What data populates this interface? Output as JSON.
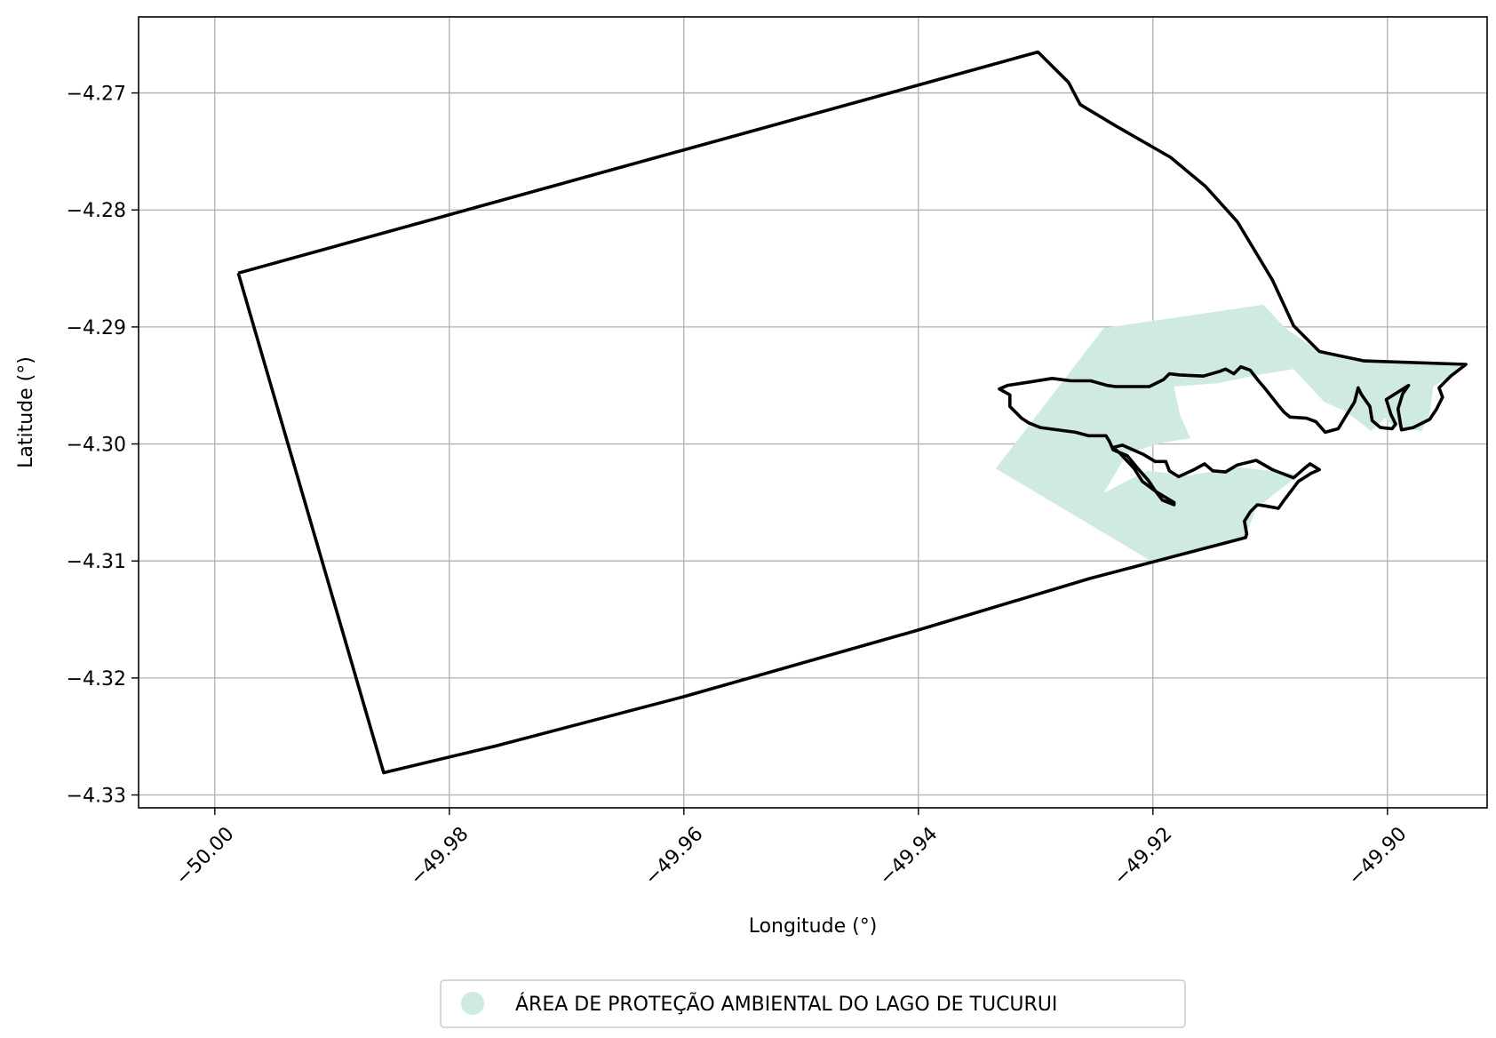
{
  "map": {
    "xlabel": "Longitude (°)",
    "ylabel": "Latitude (°)",
    "xlim": [
      -50.0065,
      -49.8915
    ],
    "ylim": [
      -4.3311,
      -4.2635
    ],
    "grid": true,
    "legend_placement": "bottom-center",
    "x_ticks": [
      {
        "value": -50.0,
        "label": "−50.00"
      },
      {
        "value": -49.98,
        "label": "−49.98"
      },
      {
        "value": -49.96,
        "label": "−49.96"
      },
      {
        "value": -49.94,
        "label": "−49.94"
      },
      {
        "value": -49.92,
        "label": "−49.92"
      },
      {
        "value": -49.9,
        "label": "−49.90"
      }
    ],
    "y_ticks": [
      {
        "value": -4.27,
        "label": "−4.27"
      },
      {
        "value": -4.28,
        "label": "−4.28"
      },
      {
        "value": -4.29,
        "label": "−4.29"
      },
      {
        "value": -4.3,
        "label": "−4.30"
      },
      {
        "value": -4.31,
        "label": "−4.31"
      },
      {
        "value": -4.32,
        "label": "−4.32"
      },
      {
        "value": -4.33,
        "label": "−4.33"
      }
    ],
    "colors": {
      "boundary": "#000000",
      "protected_area": "#cfeade",
      "grid": "#b0b0b0",
      "axes": "#000000"
    },
    "layers": {
      "protected_area": {
        "name": "ÁREA DE PROTEÇÃO AMBIENTAL DO LAGO DE TUCURUI",
        "coords": [
          [
            -49.9334,
            -4.3021
          ],
          [
            -49.9242,
            -4.2901
          ],
          [
            -49.9106,
            -4.2881
          ],
          [
            -49.9087,
            -4.2901
          ],
          [
            -49.9057,
            -4.2922
          ],
          [
            -49.9017,
            -4.2929
          ],
          [
            -49.8933,
            -4.2933
          ],
          [
            -49.8961,
            -4.2951
          ],
          [
            -49.8964,
            -4.2975
          ],
          [
            -49.8971,
            -4.2989
          ],
          [
            -49.8995,
            -4.2985
          ],
          [
            -49.9002,
            -4.2978
          ],
          [
            -49.9014,
            -4.2989
          ],
          [
            -49.9028,
            -4.2978
          ],
          [
            -49.9038,
            -4.2971
          ],
          [
            -49.9054,
            -4.2964
          ],
          [
            -49.908,
            -4.2936
          ],
          [
            -49.9111,
            -4.2941
          ],
          [
            -49.9144,
            -4.2948
          ],
          [
            -49.9182,
            -4.2951
          ],
          [
            -49.9177,
            -4.2975
          ],
          [
            -49.9168,
            -4.2995
          ],
          [
            -49.9192,
            -4.2999
          ],
          [
            -49.9222,
            -4.3008
          ],
          [
            -49.9242,
            -4.3042
          ],
          [
            -49.9205,
            -4.3023
          ],
          [
            -49.917,
            -4.3027
          ],
          [
            -49.9126,
            -4.302
          ],
          [
            -49.9075,
            -4.3026
          ],
          [
            -49.9112,
            -4.3055
          ],
          [
            -49.9122,
            -4.3081
          ],
          [
            -49.92,
            -4.3101
          ]
        ]
      },
      "municipality_boundary": {
        "coords": [
          [
            -49.998,
            -4.2854
          ],
          [
            -49.9298,
            -4.2665
          ],
          [
            -49.9272,
            -4.2691
          ],
          [
            -49.9262,
            -4.271
          ],
          [
            -49.9232,
            -4.2728
          ],
          [
            -49.9185,
            -4.2755
          ],
          [
            -49.9155,
            -4.278
          ],
          [
            -49.9128,
            -4.281
          ],
          [
            -49.9098,
            -4.286
          ],
          [
            -49.908,
            -4.2899
          ],
          [
            -49.9058,
            -4.2921
          ],
          [
            -49.902,
            -4.2929
          ],
          [
            -49.8933,
            -4.2932
          ],
          [
            -49.8946,
            -4.2942
          ],
          [
            -49.8956,
            -4.2952
          ],
          [
            -49.8953,
            -4.296
          ],
          [
            -49.8958,
            -4.297
          ],
          [
            -49.8964,
            -4.2979
          ],
          [
            -49.8978,
            -4.2986
          ],
          [
            -49.8988,
            -4.2988
          ],
          [
            -49.8991,
            -4.297
          ],
          [
            -49.8987,
            -4.2957
          ],
          [
            -49.8982,
            -4.295
          ],
          [
            -49.8993,
            -4.2957
          ],
          [
            -49.9001,
            -4.2962
          ],
          [
            -49.8997,
            -4.2975
          ],
          [
            -49.8993,
            -4.2983
          ],
          [
            -49.8996,
            -4.2987
          ],
          [
            -49.9006,
            -4.2986
          ],
          [
            -49.9013,
            -4.298
          ],
          [
            -49.9015,
            -4.2968
          ],
          [
            -49.9022,
            -4.2958
          ],
          [
            -49.9025,
            -4.2952
          ],
          [
            -49.9028,
            -4.2964
          ],
          [
            -49.9036,
            -4.2977
          ],
          [
            -49.9042,
            -4.2987
          ],
          [
            -49.9053,
            -4.299
          ],
          [
            -49.9061,
            -4.2981
          ],
          [
            -49.9069,
            -4.2978
          ],
          [
            -49.9083,
            -4.2977
          ],
          [
            -49.9088,
            -4.2973
          ],
          [
            -49.9093,
            -4.2967
          ],
          [
            -49.9104,
            -4.2953
          ],
          [
            -49.911,
            -4.2946
          ],
          [
            -49.9117,
            -4.2937
          ],
          [
            -49.9125,
            -4.2934
          ],
          [
            -49.9131,
            -4.294
          ],
          [
            -49.9138,
            -4.2936
          ],
          [
            -49.9143,
            -4.2938
          ],
          [
            -49.9157,
            -4.2942
          ],
          [
            -49.9177,
            -4.2941
          ],
          [
            -49.9186,
            -4.294
          ],
          [
            -49.9191,
            -4.2945
          ],
          [
            -49.9203,
            -4.2951
          ],
          [
            -49.922,
            -4.2951
          ],
          [
            -49.9232,
            -4.2951
          ],
          [
            -49.9239,
            -4.295
          ],
          [
            -49.9253,
            -4.2946
          ],
          [
            -49.927,
            -4.2946
          ],
          [
            -49.9286,
            -4.2944
          ],
          [
            -49.9305,
            -4.2947
          ],
          [
            -49.9324,
            -4.295
          ],
          [
            -49.9331,
            -4.2953
          ],
          [
            -49.9322,
            -4.2958
          ],
          [
            -49.9322,
            -4.2968
          ],
          [
            -49.9312,
            -4.2978
          ],
          [
            -49.9306,
            -4.2982
          ],
          [
            -49.9296,
            -4.2986
          ],
          [
            -49.9266,
            -4.299
          ],
          [
            -49.9255,
            -4.2993
          ],
          [
            -49.924,
            -4.2993
          ],
          [
            -49.9237,
            -4.2998
          ],
          [
            -49.9234,
            -4.3005
          ],
          [
            -49.9222,
            -4.301
          ],
          [
            -49.9212,
            -4.3022
          ],
          [
            -49.9204,
            -4.3031
          ],
          [
            -49.9198,
            -4.304
          ],
          [
            -49.9192,
            -4.3048
          ],
          [
            -49.9182,
            -4.3052
          ],
          [
            -49.9182,
            -4.305
          ],
          [
            -49.9197,
            -4.3041
          ],
          [
            -49.9209,
            -4.3032
          ],
          [
            -49.9216,
            -4.3021
          ],
          [
            -49.9228,
            -4.3008
          ],
          [
            -49.9234,
            -4.3003
          ],
          [
            -49.9226,
            -4.3001
          ],
          [
            -49.9208,
            -4.3009
          ],
          [
            -49.9198,
            -4.3015
          ],
          [
            -49.9189,
            -4.3015
          ],
          [
            -49.9186,
            -4.3023
          ],
          [
            -49.9178,
            -4.3028
          ],
          [
            -49.9165,
            -4.3022
          ],
          [
            -49.9156,
            -4.3017
          ],
          [
            -49.9149,
            -4.3023
          ],
          [
            -49.9138,
            -4.3024
          ],
          [
            -49.9128,
            -4.3018
          ],
          [
            -49.9112,
            -4.3014
          ],
          [
            -49.9098,
            -4.3022
          ],
          [
            -49.908,
            -4.3029
          ],
          [
            -49.9071,
            -4.3021
          ],
          [
            -49.9066,
            -4.3017
          ],
          [
            -49.9058,
            -4.3022
          ],
          [
            -49.9065,
            -4.3025
          ],
          [
            -49.9076,
            -4.3032
          ],
          [
            -49.9082,
            -4.304
          ],
          [
            -49.9088,
            -4.3048
          ],
          [
            -49.9093,
            -4.3055
          ],
          [
            -49.9104,
            -4.3053
          ],
          [
            -49.9111,
            -4.3052
          ],
          [
            -49.9117,
            -4.3058
          ],
          [
            -49.9122,
            -4.3066
          ],
          [
            -49.912,
            -4.3077
          ],
          [
            -49.9121,
            -4.308
          ],
          [
            -49.9254,
            -4.3115
          ],
          [
            -49.94,
            -4.3159
          ],
          [
            -49.96,
            -4.3216
          ],
          [
            -49.976,
            -4.3258
          ],
          [
            -49.9856,
            -4.3281
          ],
          [
            -49.998,
            -4.2854
          ]
        ]
      }
    }
  }
}
